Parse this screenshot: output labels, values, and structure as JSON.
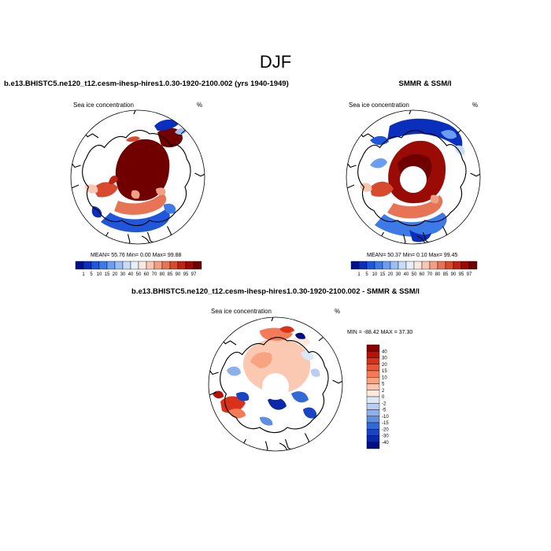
{
  "title": "DJF",
  "subtitles": {
    "left": "b.e13.BHISTC5.ne120_t12.cesm-ihesp-hires1.0.30-1920-2100.002 (yrs 1940-1949)",
    "right": "SMMR & SSM/I",
    "bottom": "b.e13.BHISTC5.ne120_t12.cesm-ihesp-hires1.0.30-1920-2100.002 - SMMR & SSM/I"
  },
  "panels": {
    "model": {
      "variable": "Sea ice concentration",
      "units": "%",
      "stats": "MEAN=  55.76  Min=   0.00  Max=  99.88"
    },
    "obs": {
      "variable": "Sea ice concentration",
      "units": "%",
      "stats": "MEAN=  50.37  Min=   0.10  Max=  99.45"
    },
    "diff": {
      "variable": "Sea ice concentration",
      "units": "%",
      "stats": "MIN = -88.42  MAX =  37.30"
    }
  },
  "chart_data": [
    {
      "type": "heatmap",
      "title": "Sea ice concentration (model)",
      "units": "%",
      "projection": "north polar stereographic",
      "colorbar_levels": [
        "1",
        "5",
        "10",
        "15",
        "20",
        "30",
        "40",
        "50",
        "60",
        "70",
        "80",
        "85",
        "90",
        "95",
        "97"
      ],
      "colorbar_colors": [
        "#00108a",
        "#0a2fbd",
        "#1f56dc",
        "#3e79e8",
        "#6b9df0",
        "#9bbff5",
        "#c9dcf7",
        "#e6eefa",
        "#fbe8df",
        "#f7c7b3",
        "#f2a083",
        "#e87456",
        "#d84a2e",
        "#bd2314",
        "#9a0b06",
        "#700000"
      ],
      "mean": 55.76,
      "min": 0.0,
      "max": 99.88
    },
    {
      "type": "heatmap",
      "title": "Sea ice concentration (SMMR & SSM/I)",
      "units": "%",
      "projection": "north polar stereographic",
      "colorbar_levels": [
        "1",
        "5",
        "10",
        "15",
        "20",
        "30",
        "40",
        "50",
        "60",
        "70",
        "80",
        "85",
        "90",
        "95",
        "97"
      ],
      "colorbar_colors": [
        "#00108a",
        "#0a2fbd",
        "#1f56dc",
        "#3e79e8",
        "#6b9df0",
        "#9bbff5",
        "#c9dcf7",
        "#e6eefa",
        "#fbe8df",
        "#f7c7b3",
        "#f2a083",
        "#e87456",
        "#d84a2e",
        "#bd2314",
        "#9a0b06",
        "#700000"
      ],
      "mean": 50.37,
      "min": 0.1,
      "max": 99.45
    },
    {
      "type": "heatmap",
      "title": "Sea ice concentration (model - obs)",
      "units": "%",
      "projection": "north polar stereographic",
      "colorbar_levels": [
        "40",
        "30",
        "20",
        "15",
        "10",
        "5",
        "2",
        "0",
        "-2",
        "-5",
        "-10",
        "-15",
        "-20",
        "-30",
        "-40"
      ],
      "colorbar_colors": [
        "#8a0000",
        "#b81208",
        "#d8321a",
        "#ea5634",
        "#f37b58",
        "#f8a382",
        "#fbc9b1",
        "#fde8dc",
        "#dce8f6",
        "#b8cdf0",
        "#8eb0ea",
        "#5f8ee3",
        "#3468d6",
        "#1a44c2",
        "#0a28a8",
        "#000f80"
      ],
      "min": -88.42,
      "max": 37.3
    }
  ]
}
